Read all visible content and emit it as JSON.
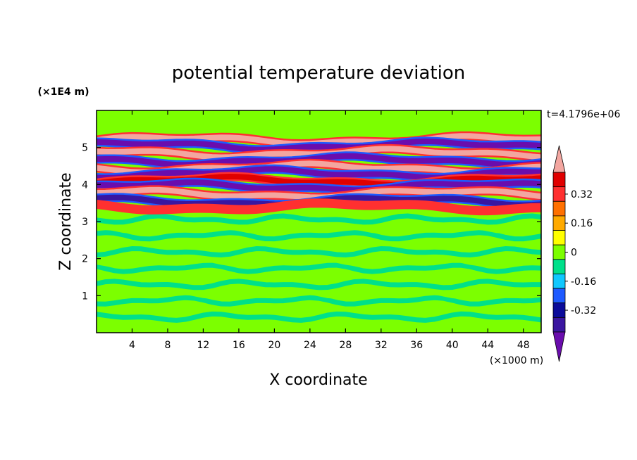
{
  "chart_data": {
    "type": "heatmap",
    "title": "potential temperature deviation",
    "xlabel": "X coordinate",
    "ylabel": "Z coordinate",
    "x_unit": "(×1000 m)",
    "y_unit": "(×1E4 m)",
    "time_label": "t=4.1796e+06",
    "xlim": [
      0,
      50
    ],
    "ylim": [
      0,
      6
    ],
    "x_ticks": [
      4,
      8,
      12,
      16,
      20,
      24,
      28,
      32,
      36,
      40,
      44,
      48
    ],
    "y_ticks": [
      1,
      2,
      3,
      4,
      5
    ],
    "colorbar": {
      "levels": [
        -0.48,
        -0.4,
        -0.32,
        -0.24,
        -0.16,
        -0.08,
        0,
        0.08,
        0.16,
        0.24,
        0.32,
        0.4,
        0.48
      ],
      "colors": [
        "#6a0dad",
        "#3a16a0",
        "#0b0b9a",
        "#1e5aff",
        "#10c8ff",
        "#00e08a",
        "#7cff00",
        "#ffff00",
        "#ffaa00",
        "#ff7000",
        "#ff3030",
        "#e00000",
        "#f3a6a0"
      ],
      "tick_labels": [
        "0.32",
        "0.16",
        "0",
        "-0.16",
        "-0.32"
      ],
      "tick_values": [
        0.32,
        0.16,
        0,
        -0.16,
        -0.32
      ]
    },
    "bands": [
      {
        "z": 5.2,
        "value": 0.45
      },
      {
        "z": 5.05,
        "value": -0.45
      },
      {
        "z": 4.85,
        "value": 0.45
      },
      {
        "z": 4.65,
        "value": -0.45
      },
      {
        "z": 4.45,
        "value": 0.45
      },
      {
        "z": 4.3,
        "value": -0.45
      },
      {
        "z": 4.1,
        "value": 0.4
      },
      {
        "z": 3.95,
        "value": -0.45
      },
      {
        "z": 3.75,
        "value": 0.45
      },
      {
        "z": 3.55,
        "value": -0.4
      },
      {
        "z": 3.4,
        "value": 0.3
      }
    ]
  }
}
